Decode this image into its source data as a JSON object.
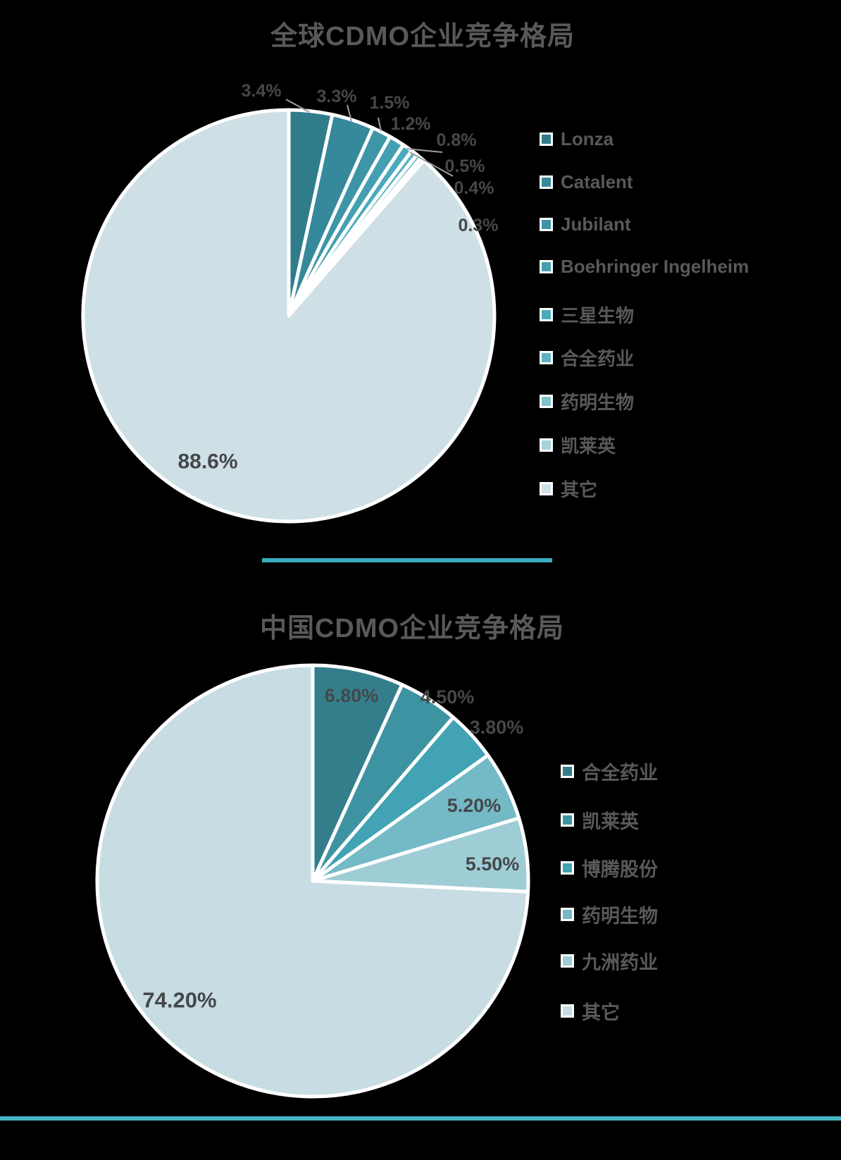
{
  "chart_data": [
    {
      "type": "pie",
      "title": "全球CDMO企业竞争格局",
      "legend_position": "right",
      "categories": [
        "Lonza",
        "Catalent",
        "Jubilant",
        "Boehringer Ingelheim",
        "三星生物",
        "合全药业",
        "药明生物",
        "凯莱英",
        "其它"
      ],
      "values": [
        3.4,
        3.3,
        1.5,
        1.2,
        0.8,
        0.5,
        0.4,
        0.3,
        88.6
      ],
      "percent_labels": [
        "3.4%",
        "3.3%",
        "1.5%",
        "1.2%",
        "0.8%",
        "0.5%",
        "0.4%",
        "0.3%",
        "88.6%"
      ],
      "colors": [
        "#2f7d8b",
        "#36899a",
        "#3d95a5",
        "#43a0b0",
        "#4aabbb",
        "#5bb3c2",
        "#7fc2ce",
        "#a6d3dc",
        "#cee0e6"
      ]
    },
    {
      "type": "pie",
      "title": "中国CDMO企业竞争格局",
      "legend_position": "right",
      "categories": [
        "合全药业",
        "凯莱英",
        "博腾股份",
        "药明生物",
        "九洲药业",
        "其它"
      ],
      "values": [
        6.8,
        4.5,
        3.8,
        5.2,
        5.5,
        74.2
      ],
      "percent_labels": [
        "6.80%",
        "4.50%",
        "3.80%",
        "5.20%",
        "5.50%",
        "74.20%"
      ],
      "colors": [
        "#347e8c",
        "#3e93a2",
        "#41a3b3",
        "#73b9c6",
        "#9fcdd6",
        "#c7dde3"
      ]
    }
  ],
  "styles": {
    "background": "#000000",
    "title_color": "#58595b",
    "legend_text_color": "#58595b",
    "percent_label_color": "#454749",
    "leader_line_color": "#9e9e9e",
    "slice_border_color": "#ffffff",
    "divider_middle_color": "#3aacbe",
    "divider_bottom_color": "#48b4c4"
  }
}
